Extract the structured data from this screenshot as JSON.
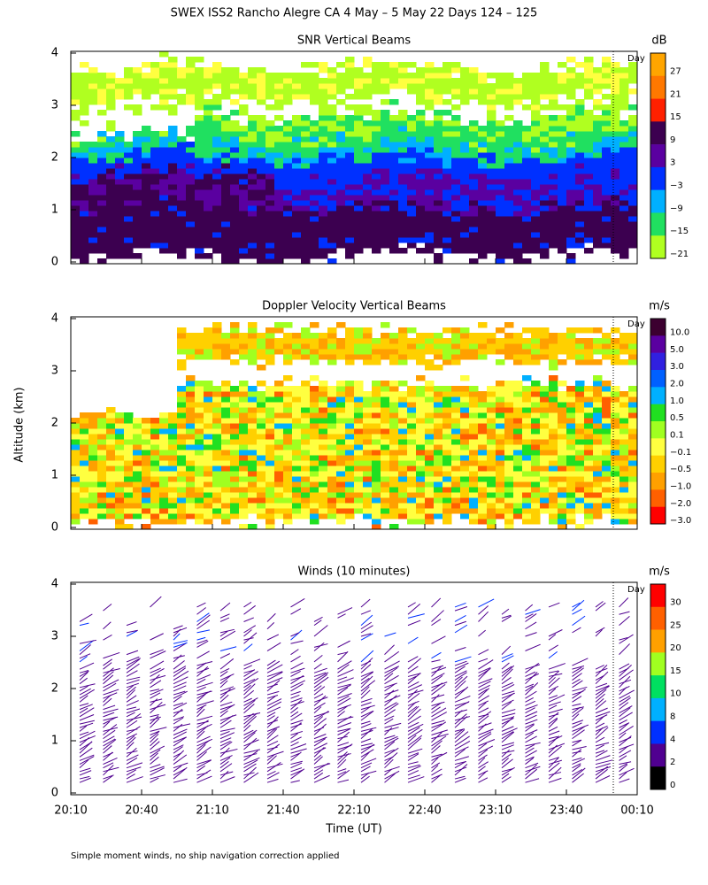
{
  "title": "SWEX ISS2 Rancho Alegre CA   4 May –  5 May 22 Days 124 – 125",
  "y_axis_label": "Altitude (km)",
  "x_axis_label": "Time (UT)",
  "xticks": [
    "20:10",
    "20:40",
    "21:10",
    "21:40",
    "22:10",
    "22:40",
    "23:10",
    "23:40",
    "00:10"
  ],
  "footnote": "Simple moment winds, no ship navigation correction applied",
  "panels": [
    {
      "title": "SNR Vertical Beams",
      "unit": "dB",
      "day_label": "Day",
      "yticks": [
        "0",
        "1",
        "2",
        "3",
        "4"
      ],
      "colorbar": {
        "labels": [
          "27",
          "21",
          "15",
          "9",
          "3",
          "−3",
          "−9",
          "−15",
          "−21"
        ],
        "colors": [
          "#ffa500",
          "#ff7800",
          "#ff2000",
          "#3c0050",
          "#5a00a0",
          "#0030ff",
          "#00b0ff",
          "#20e060",
          "#b0ff20"
        ]
      }
    },
    {
      "title": "Doppler Velocity Vertical Beams",
      "unit": "m/s",
      "day_label": "Day",
      "yticks": [
        "0",
        "1",
        "2",
        "3",
        "4"
      ],
      "colorbar": {
        "labels": [
          "10.0",
          "5.0",
          "3.0",
          "2.0",
          "1.0",
          "0.5",
          "0.1",
          "−0.1",
          "−0.5",
          "−1.0",
          "−2.0",
          "−3.0"
        ],
        "colors": [
          "#3c0030",
          "#5a00a0",
          "#3020e0",
          "#0060ff",
          "#00b0ff",
          "#20e020",
          "#a0ff20",
          "#ffff40",
          "#ffd000",
          "#ffa000",
          "#ff6000",
          "#ff0000"
        ]
      }
    },
    {
      "title": "Winds (10 minutes)",
      "unit": "m/s",
      "day_label": "Day",
      "yticks": [
        "0",
        "1",
        "2",
        "3",
        "4"
      ],
      "colorbar": {
        "labels": [
          "30",
          "25",
          "20",
          "15",
          "10",
          "8",
          "4",
          "2",
          "0"
        ],
        "colors": [
          "#ff0000",
          "#ff6000",
          "#ffa000",
          "#a0ff20",
          "#00e060",
          "#00b0ff",
          "#0030ff",
          "#500090",
          "#000000"
        ]
      }
    }
  ]
}
